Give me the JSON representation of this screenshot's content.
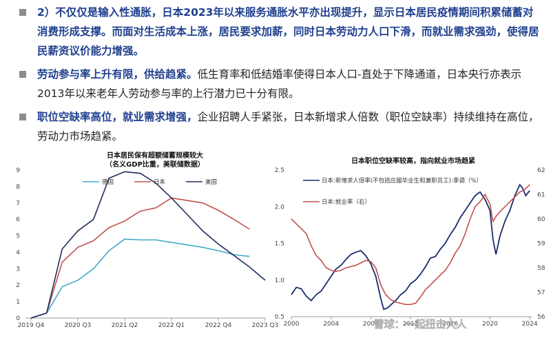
{
  "bullets": [
    {
      "text": "2）不仅仅是输入性通胀，日本2023年以来服务通胀水平亦出现提升，显示日本居民疫情期间积累储蓄对消费形成支撑。而面对生活成本上涨，居民要求加薪，同时日本劳动力人口下滑，而就业需求强劲，使得居民薪资议价能力增强。"
    },
    {
      "bold": "劳动参与率上升有限，供给趋紧。",
      "text": "低生育率和低结婚率使得日本人口-直处于下降通道，日本央行亦表示2013年以来老年人劳动参与率的上行潜力已十分有限。"
    },
    {
      "bold": "职位空缺率高位，就业需求增强，",
      "text": "企业招聘人手紧张，日本新增求人倍数（职位空缺率）持续维持在高位，劳动力市场趋紧。"
    }
  ],
  "chart_data": [
    {
      "type": "line",
      "title": "日本居民保有超额储蓄规模较大",
      "subtitle": "（名义GDP比重，美联储数据）",
      "x": [
        "2019 Q4",
        "2020 Q1",
        "2020 Q2",
        "2020 Q3",
        "2020 Q4",
        "2021 Q1",
        "2021 Q2",
        "2021 Q3",
        "2021 Q4",
        "2022 Q1",
        "2022 Q2",
        "2022 Q3",
        "2022 Q4",
        "2023 Q1",
        "2023 Q2",
        "2023 Q3"
      ],
      "x_ticks": [
        "2019 Q4",
        "2020 Q3",
        "2021 Q2",
        "2022 Q1",
        "2022 Q4",
        "2023 Q3"
      ],
      "ylim": [
        0,
        9
      ],
      "y_ticks": [
        0,
        1,
        2,
        3,
        4,
        5,
        6,
        7,
        8,
        9
      ],
      "legend_position": "top",
      "series": [
        {
          "name": "德国",
          "color": "#3fa9c8",
          "values": [
            0,
            0.3,
            1.9,
            2.3,
            3.0,
            4.1,
            4.8,
            4.75,
            4.75,
            4.6,
            4.45,
            4.3,
            4.1,
            3.85,
            3.75,
            null
          ]
        },
        {
          "name": "日本",
          "color": "#c0504d",
          "values": [
            0,
            0.3,
            3.4,
            4.3,
            4.7,
            5.5,
            5.9,
            6.5,
            6.7,
            7.3,
            7.15,
            7.0,
            6.55,
            6.0,
            5.4,
            null
          ]
        },
        {
          "name": "美国",
          "color": "#1f2d5c",
          "values": [
            0,
            0.3,
            4.2,
            5.3,
            6.0,
            8.5,
            8.9,
            8.8,
            8.2,
            7.3,
            6.3,
            5.3,
            4.5,
            3.8,
            3.1,
            2.3
          ]
        }
      ]
    },
    {
      "type": "line",
      "title": "日本职位空缺率较高，指向就业市场趋紧",
      "x_ticks": [
        "2000",
        "2004",
        "2008",
        "2012",
        "2016",
        "2020",
        "2024"
      ],
      "xlim": [
        2000,
        2024.2
      ],
      "y_left": {
        "ylim": [
          0.5,
          2.5
        ],
        "ticks": [
          "0.5",
          "1.0",
          "1.5",
          "2.0",
          "2.5"
        ]
      },
      "y_right": {
        "ylim": [
          56,
          62
        ],
        "ticks": [
          "56",
          "57",
          "58",
          "59",
          "60",
          "61",
          "62"
        ]
      },
      "legend_position": "top-left",
      "series": [
        {
          "name": "日本:新增求人倍率(不包括应届毕业生和兼职员工):季调（%）",
          "axis": "left",
          "color": "#1a2a6c",
          "points": [
            [
              2000,
              0.8
            ],
            [
              2000.5,
              0.9
            ],
            [
              2001,
              0.88
            ],
            [
              2001.5,
              0.78
            ],
            [
              2002,
              0.72
            ],
            [
              2002.5,
              0.8
            ],
            [
              2003,
              0.85
            ],
            [
              2003.5,
              0.95
            ],
            [
              2004,
              1.05
            ],
            [
              2004.5,
              1.15
            ],
            [
              2005,
              1.2
            ],
            [
              2005.5,
              1.28
            ],
            [
              2006,
              1.35
            ],
            [
              2006.5,
              1.38
            ],
            [
              2007,
              1.4
            ],
            [
              2007.5,
              1.33
            ],
            [
              2008,
              1.22
            ],
            [
              2008.5,
              1.05
            ],
            [
              2009,
              0.75
            ],
            [
              2009.3,
              0.6
            ],
            [
              2009.7,
              0.62
            ],
            [
              2010,
              0.66
            ],
            [
              2010.5,
              0.72
            ],
            [
              2011,
              0.8
            ],
            [
              2011.5,
              0.85
            ],
            [
              2012,
              0.95
            ],
            [
              2012.5,
              1.0
            ],
            [
              2013,
              1.08
            ],
            [
              2013.5,
              1.18
            ],
            [
              2014,
              1.3
            ],
            [
              2014.5,
              1.32
            ],
            [
              2015,
              1.42
            ],
            [
              2015.5,
              1.5
            ],
            [
              2016,
              1.62
            ],
            [
              2016.5,
              1.72
            ],
            [
              2017,
              1.85
            ],
            [
              2017.5,
              1.95
            ],
            [
              2018,
              2.05
            ],
            [
              2018.5,
              2.15
            ],
            [
              2019,
              2.2
            ],
            [
              2019.5,
              2.1
            ],
            [
              2020,
              1.95
            ],
            [
              2020.3,
              1.55
            ],
            [
              2020.6,
              1.35
            ],
            [
              2021,
              1.6
            ],
            [
              2021.5,
              1.8
            ],
            [
              2022,
              1.95
            ],
            [
              2022.5,
              2.15
            ],
            [
              2023,
              2.3
            ],
            [
              2023.3,
              2.25
            ],
            [
              2023.6,
              2.15
            ],
            [
              2024,
              2.22
            ]
          ]
        },
        {
          "name": "日本:就业率（右）",
          "axis": "right",
          "color": "#c0504d",
          "points": [
            [
              2000,
              60.0
            ],
            [
              2000.5,
              59.8
            ],
            [
              2001,
              59.6
            ],
            [
              2001.5,
              59.4
            ],
            [
              2002,
              58.9
            ],
            [
              2002.5,
              58.5
            ],
            [
              2003,
              58.3
            ],
            [
              2003.5,
              58.0
            ],
            [
              2004,
              57.9
            ],
            [
              2004.5,
              57.85
            ],
            [
              2005,
              57.9
            ],
            [
              2005.5,
              58.0
            ],
            [
              2006,
              58.05
            ],
            [
              2006.5,
              58.1
            ],
            [
              2007,
              58.2
            ],
            [
              2007.5,
              58.3
            ],
            [
              2008,
              58.25
            ],
            [
              2008.5,
              58.0
            ],
            [
              2009,
              57.3
            ],
            [
              2009.5,
              56.9
            ],
            [
              2010,
              56.7
            ],
            [
              2010.5,
              56.6
            ],
            [
              2011,
              56.55
            ],
            [
              2011.5,
              56.5
            ],
            [
              2012,
              56.5
            ],
            [
              2012.5,
              56.55
            ],
            [
              2013,
              56.8
            ],
            [
              2013.5,
              57.1
            ],
            [
              2014,
              57.3
            ],
            [
              2014.5,
              57.5
            ],
            [
              2015,
              57.7
            ],
            [
              2015.5,
              57.9
            ],
            [
              2016,
              58.2
            ],
            [
              2016.5,
              58.6
            ],
            [
              2017,
              58.9
            ],
            [
              2017.5,
              59.4
            ],
            [
              2018,
              60.0
            ],
            [
              2018.5,
              60.5
            ],
            [
              2019,
              60.7
            ],
            [
              2019.5,
              61.0
            ],
            [
              2020,
              60.6
            ],
            [
              2020.3,
              59.9
            ],
            [
              2020.6,
              60.1
            ],
            [
              2021,
              60.3
            ],
            [
              2021.5,
              60.5
            ],
            [
              2022,
              60.7
            ],
            [
              2022.5,
              60.9
            ],
            [
              2023,
              61.1
            ],
            [
              2023.5,
              61.2
            ],
            [
              2024,
              61.4
            ]
          ]
        }
      ]
    }
  ],
  "watermark": "雪球：一起扭击大人"
}
